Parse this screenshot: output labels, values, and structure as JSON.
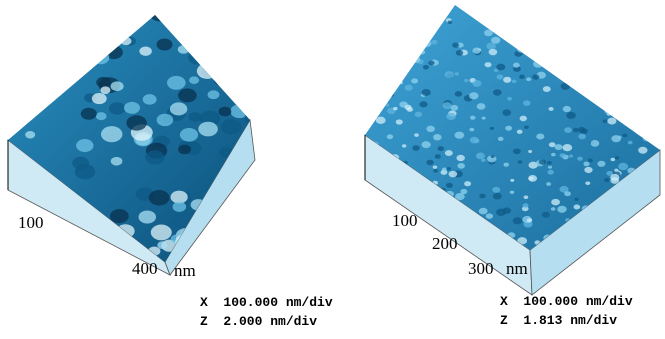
{
  "panels": [
    {
      "axis_labels": [
        "100",
        "400"
      ],
      "unit": "nm",
      "scale": [
        "X  100.000 nm/div",
        "Z  2.000 nm/div"
      ]
    },
    {
      "axis_labels": [
        "100",
        "200",
        "300"
      ],
      "unit": "nm",
      "scale": [
        "X  100.000 nm/div",
        "Z  1.813 nm/div"
      ]
    }
  ]
}
